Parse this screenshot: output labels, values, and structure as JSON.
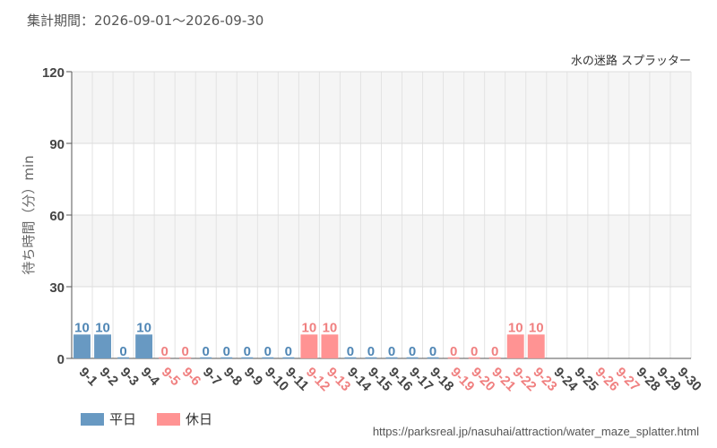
{
  "header": {
    "period_label": "集計期間：2026-09-01〜2026-09-30"
  },
  "footer": {
    "source_url": "https://parksreal.jp/nasuhai/attraction/water_maze_splatter.html"
  },
  "colors": {
    "weekday": "#6899c2",
    "holiday": "#ff9393",
    "weekday_text": "#4f86b5",
    "holiday_text": "#f08080"
  },
  "chart_data": {
    "type": "bar",
    "title": "水の迷路 スプラッター",
    "xlabel": "",
    "ylabel": "待ち時間（分）min",
    "ylim": [
      0,
      120
    ],
    "yticks": [
      0,
      30,
      60,
      90,
      120
    ],
    "grid": true,
    "legend_position": "bottom-left",
    "legend": [
      {
        "key": "weekday",
        "label": "平日"
      },
      {
        "key": "holiday",
        "label": "休日"
      }
    ],
    "categories": [
      "9-1",
      "9-2",
      "9-3",
      "9-4",
      "9-5",
      "9-6",
      "9-7",
      "9-8",
      "9-9",
      "9-10",
      "9-11",
      "9-12",
      "9-13",
      "9-14",
      "9-15",
      "9-16",
      "9-17",
      "9-18",
      "9-19",
      "9-20",
      "9-21",
      "9-22",
      "9-23",
      "9-24",
      "9-25",
      "9-26",
      "9-27",
      "9-28",
      "9-29",
      "9-30"
    ],
    "values": [
      10,
      10,
      0,
      10,
      0,
      0,
      0,
      0,
      0,
      0,
      0,
      10,
      10,
      0,
      0,
      0,
      0,
      0,
      0,
      0,
      0,
      10,
      10,
      null,
      null,
      null,
      null,
      null,
      null,
      null
    ],
    "day_type": [
      "weekday",
      "weekday",
      "weekday",
      "weekday",
      "holiday",
      "holiday",
      "weekday",
      "weekday",
      "weekday",
      "weekday",
      "weekday",
      "holiday",
      "holiday",
      "weekday",
      "weekday",
      "weekday",
      "weekday",
      "weekday",
      "holiday",
      "holiday",
      "holiday",
      "holiday",
      "holiday",
      "weekday",
      "weekday",
      "holiday",
      "holiday",
      "weekday",
      "weekday",
      "weekday"
    ]
  }
}
